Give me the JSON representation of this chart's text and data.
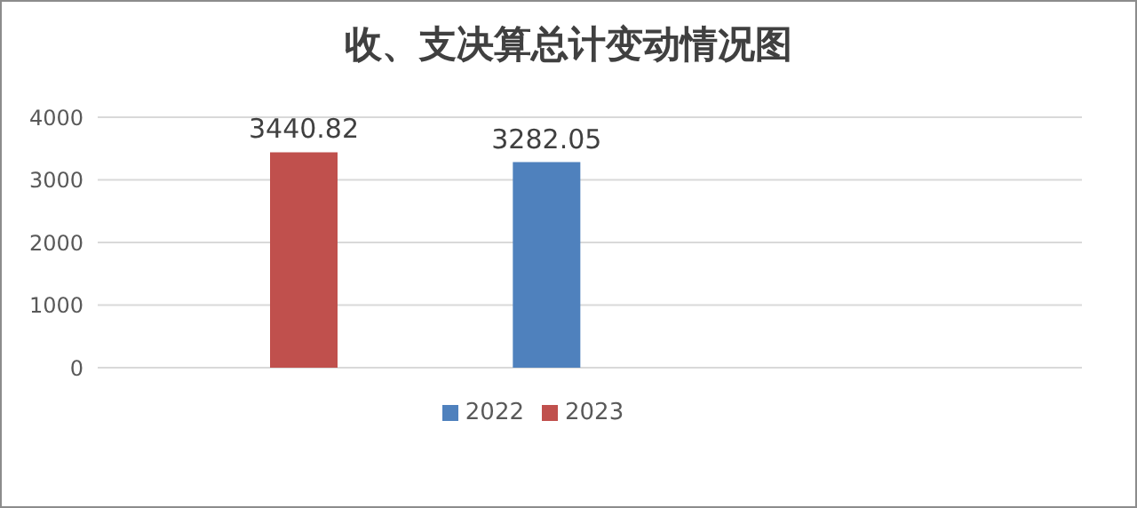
{
  "chart_data": {
    "type": "bar",
    "title": "收、支决算总计变动情况图",
    "categories": [
      null,
      null,
      null
    ],
    "series": [
      {
        "name": "2022",
        "color": "#4f81bd",
        "values": [
          null,
          3282.05,
          null
        ]
      },
      {
        "name": "2023",
        "color": "#c0504d",
        "values": [
          3440.82,
          null,
          null
        ]
      }
    ],
    "ylim": [
      0,
      4000
    ],
    "yticks": [
      0,
      1000,
      2000,
      3000,
      4000
    ],
    "grid": "y",
    "legend": "bottom",
    "data_labels": true
  }
}
